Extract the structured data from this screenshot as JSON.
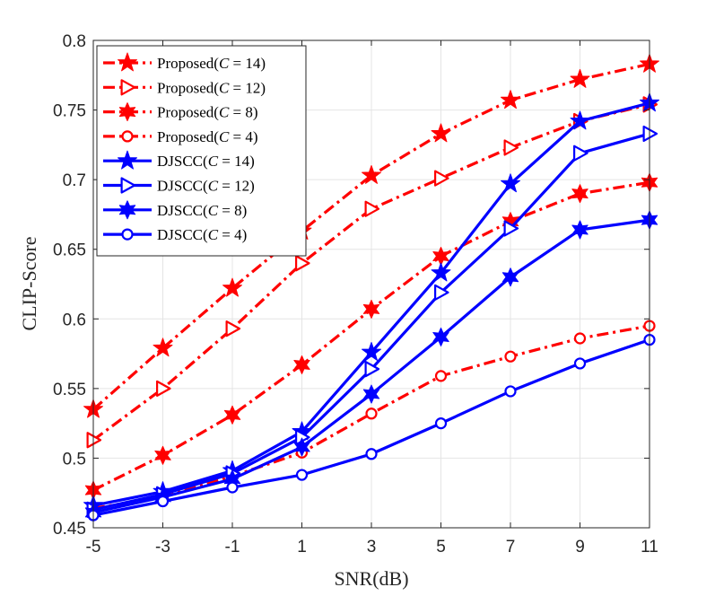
{
  "chart_data": {
    "type": "line",
    "title": "",
    "xlabel": "SNR(dB)",
    "ylabel": "CLIP-Score",
    "x": [
      -5,
      -3,
      -1,
      1,
      3,
      5,
      7,
      9,
      11
    ],
    "x_tick_labels": [
      "-5",
      "-3",
      "-1",
      "1",
      "3",
      "5",
      "7",
      "9",
      "11"
    ],
    "xlim": [
      -5,
      11
    ],
    "ylim": [
      0.45,
      0.8
    ],
    "y_ticks": [
      0.45,
      0.5,
      0.55,
      0.6,
      0.65,
      0.7,
      0.75,
      0.8
    ],
    "y_tick_labels": [
      "0.45",
      "0.5",
      "0.55",
      "0.6",
      "0.65",
      "0.7",
      "0.75",
      "0.8"
    ],
    "grid": true,
    "legend_position": "top-left",
    "series": [
      {
        "name": "Proposed(C = 14)",
        "legend_prefix": "Proposed(",
        "legend_var": "C",
        "legend_suffix": " = 14)",
        "color": "#ff0000",
        "style": "dashdot",
        "marker": "pentagram",
        "values": [
          0.535,
          0.579,
          0.622,
          0.663,
          0.703,
          0.733,
          0.757,
          0.772,
          0.783
        ]
      },
      {
        "name": "Proposed(C = 12)",
        "legend_prefix": "Proposed(",
        "legend_var": "C",
        "legend_suffix": " = 12)",
        "color": "#ff0000",
        "style": "dashdot",
        "marker": "triangle-right",
        "values": [
          0.513,
          0.55,
          0.593,
          0.64,
          0.679,
          0.701,
          0.723,
          0.742,
          0.754
        ]
      },
      {
        "name": "Proposed(C = 8)",
        "legend_prefix": "Proposed(",
        "legend_var": "C",
        "legend_suffix": " = 8)",
        "color": "#ff0000",
        "style": "dashdot",
        "marker": "hexagram",
        "values": [
          0.477,
          0.502,
          0.531,
          0.567,
          0.607,
          0.645,
          0.67,
          0.69,
          0.698
        ]
      },
      {
        "name": "Proposed(C = 4)",
        "legend_prefix": "Proposed(",
        "legend_var": "C",
        "legend_suffix": " = 4)",
        "color": "#ff0000",
        "style": "dashdot",
        "marker": "circle",
        "values": [
          0.464,
          0.472,
          0.487,
          0.504,
          0.532,
          0.559,
          0.573,
          0.586,
          0.595
        ]
      },
      {
        "name": "DJSCC(C = 14)",
        "legend_prefix": "DJSCC(",
        "legend_var": "C",
        "legend_suffix": " = 14)",
        "color": "#0000ff",
        "style": "solid",
        "marker": "pentagram",
        "values": [
          0.466,
          0.476,
          0.491,
          0.519,
          0.576,
          0.633,
          0.697,
          0.742,
          0.755
        ]
      },
      {
        "name": "DJSCC(C = 12)",
        "legend_prefix": "DJSCC(",
        "legend_var": "C",
        "legend_suffix": " = 12)",
        "color": "#0000ff",
        "style": "solid",
        "marker": "triangle-right",
        "values": [
          0.463,
          0.474,
          0.489,
          0.515,
          0.564,
          0.619,
          0.665,
          0.719,
          0.733
        ]
      },
      {
        "name": "DJSCC(C = 8)",
        "legend_prefix": "DJSCC(",
        "legend_var": "C",
        "legend_suffix": " = 8)",
        "color": "#0000ff",
        "style": "solid",
        "marker": "hexagram",
        "values": [
          0.461,
          0.472,
          0.485,
          0.508,
          0.546,
          0.587,
          0.63,
          0.664,
          0.671
        ]
      },
      {
        "name": "DJSCC(C = 4)",
        "legend_prefix": "DJSCC(",
        "legend_var": "C",
        "legend_suffix": " = 4)",
        "color": "#0000ff",
        "style": "solid",
        "marker": "circle",
        "values": [
          0.459,
          0.469,
          0.479,
          0.488,
          0.503,
          0.525,
          0.548,
          0.568,
          0.585
        ]
      }
    ]
  }
}
